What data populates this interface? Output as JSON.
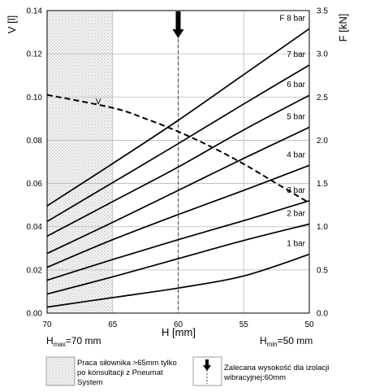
{
  "chart_data": {
    "type": "line",
    "x_axis": {
      "label": "H [mm]",
      "range": [
        70,
        50
      ],
      "ticks": [
        "70",
        "65",
        "60",
        "55",
        "50"
      ],
      "hmax_label": {
        "main": "H",
        "sub": "max",
        "rest": "=70 mm"
      },
      "hmin_label": {
        "main": "H",
        "sub": "min",
        "rest": "=50 mm"
      }
    },
    "y_left": {
      "label": "V [l]",
      "range": [
        0,
        0.14
      ],
      "ticks": [
        "0.00",
        "0.02",
        "0.04",
        "0.06",
        "0.08",
        "0.10",
        "0.12",
        "0.14"
      ]
    },
    "y_right": {
      "label": "F [kN]",
      "range": [
        0,
        3.5
      ],
      "ticks": [
        "0.0",
        "0.5",
        "1.0",
        "1.5",
        "2.0",
        "2.5",
        "3.0",
        "3.5"
      ]
    },
    "force_series": [
      {
        "label": "1 bar",
        "x": [
          70,
          65,
          60,
          55,
          50
        ],
        "y": [
          0.07,
          0.18,
          0.29,
          0.43,
          0.68
        ]
      },
      {
        "label": "2 bar",
        "x": [
          70,
          65,
          60,
          55,
          50
        ],
        "y": [
          0.22,
          0.42,
          0.63,
          0.84,
          1.03
        ]
      },
      {
        "label": "3 bar",
        "x": [
          70,
          65,
          60,
          55,
          50
        ],
        "y": [
          0.38,
          0.62,
          0.85,
          1.07,
          1.3
        ]
      },
      {
        "label": "4 bar",
        "x": [
          70,
          65,
          60,
          55,
          50
        ],
        "y": [
          0.53,
          0.85,
          1.14,
          1.42,
          1.71
        ]
      },
      {
        "label": "5 bar",
        "x": [
          70,
          65,
          60,
          55,
          50
        ],
        "y": [
          0.69,
          1.05,
          1.42,
          1.79,
          2.15
        ]
      },
      {
        "label": "6 bar",
        "x": [
          70,
          65,
          60,
          55,
          50
        ],
        "y": [
          0.89,
          1.29,
          1.69,
          2.12,
          2.52
        ]
      },
      {
        "label": "7 bar",
        "x": [
          70,
          65,
          60,
          55,
          50
        ],
        "y": [
          1.06,
          1.51,
          1.96,
          2.42,
          2.87
        ]
      },
      {
        "label": "F 8 bar",
        "x": [
          70,
          65,
          60,
          55,
          50
        ],
        "y": [
          1.24,
          1.73,
          2.23,
          2.76,
          3.29
        ]
      }
    ],
    "volume_series": {
      "label": "V",
      "x": [
        70,
        65,
        62.5,
        60,
        57.5,
        55,
        52.5,
        50
      ],
      "y": [
        0.101,
        0.095,
        0.09,
        0.084,
        0.077,
        0.069,
        0.06,
        0.051
      ]
    },
    "hatched_region": {
      "from": 70,
      "to": 65
    },
    "recommended_height": 60,
    "grid": true
  },
  "legend": {
    "hatched_text": "Praca siłownika >65mm tylko po konsultacji z Pneumat System",
    "arrow_text": "Zalecana wysokość dla izolacji wibracyjnej:60mm"
  }
}
